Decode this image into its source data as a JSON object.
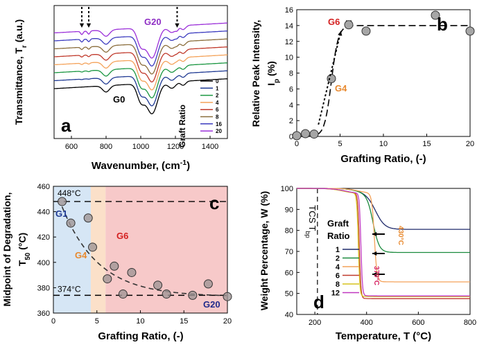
{
  "chart_data": [
    {
      "panel": "a",
      "type": "line",
      "title": "",
      "xlabel": "Wavenumber, (cm",
      "xlabel_sup": "-1",
      "xlabel_tail": ")",
      "ylabel": "Transmittance, T",
      "ylabel_sub": "r",
      "ylabel_tail": " (a.u.)",
      "xlim": [
        500,
        1500
      ],
      "xticks": [
        600,
        800,
        1000,
        1200,
        1400
      ],
      "annotations": [
        "G20",
        "G0"
      ],
      "legend_title": "Graft Ratio",
      "legend_position": "right",
      "arrow_positions_x": [
        660,
        700,
        1210
      ],
      "series": [
        {
          "name": "0",
          "color": "#000000",
          "offset": 0
        },
        {
          "name": "1",
          "color": "#1f3a93",
          "offset": 1
        },
        {
          "name": "2",
          "color": "#1a9641",
          "offset": 2
        },
        {
          "name": "4",
          "color": "#f4a259",
          "offset": 3
        },
        {
          "name": "6",
          "color": "#c0392b",
          "offset": 4
        },
        {
          "name": "8",
          "color": "#8a6d3b",
          "offset": 5
        },
        {
          "name": "16",
          "color": "#3b3bbf",
          "offset": 6
        },
        {
          "name": "20",
          "color": "#9b30d9",
          "offset": 7
        }
      ]
    },
    {
      "panel": "b",
      "type": "scatter",
      "title": "",
      "xlabel": "Grafting Ratio, (-)",
      "ylabel": "Relative Peak Intensity,",
      "ylabel2": "I",
      "ylabel2_sub": "p",
      "ylabel2_tail": " (%)",
      "xlim": [
        0,
        20
      ],
      "ylim": [
        0,
        16
      ],
      "xticks": [
        0,
        5,
        10,
        15,
        20
      ],
      "yticks": [
        0,
        2,
        4,
        6,
        8,
        10,
        12,
        14,
        16
      ],
      "annotations": [
        "G6",
        "G4"
      ],
      "x": [
        0,
        1,
        2,
        4,
        6,
        8,
        16,
        20
      ],
      "y": [
        0.1,
        0.35,
        0.3,
        7.3,
        14.1,
        13.3,
        15.3,
        13.3
      ],
      "yerr": [
        0,
        0.2,
        0,
        0,
        0.5,
        0,
        0,
        0
      ],
      "fit": {
        "type": "sigmoid",
        "plateau": 14,
        "midpoint": 4,
        "steepness": 2.5
      }
    },
    {
      "panel": "c",
      "type": "scatter",
      "title": "",
      "xlabel": "Grafting Ratio, (-)",
      "ylabel": "Midpoint of Degradation,",
      "ylabel2": "T",
      "ylabel2_sub": "50",
      "ylabel2_tail": " (°C)",
      "xlim": [
        0,
        20
      ],
      "ylim": [
        360,
        460
      ],
      "xticks": [
        0,
        5,
        10,
        15,
        20
      ],
      "yticks": [
        360,
        380,
        400,
        420,
        440,
        460
      ],
      "hlines": [
        {
          "value": 448,
          "label": "448°C"
        },
        {
          "value": 374,
          "label": "374°C"
        }
      ],
      "regions": [
        {
          "from": 0,
          "to": 4.3,
          "color": "#d6e6f5"
        },
        {
          "from": 4.3,
          "to": 6,
          "color": "#fbe0c9"
        },
        {
          "from": 6,
          "to": 20,
          "color": "#f7c9c9"
        }
      ],
      "annotations": [
        "G1",
        "G4",
        "G6",
        "G20"
      ],
      "x": [
        1,
        2,
        4,
        4.5,
        6.2,
        7,
        8,
        9,
        12,
        13,
        16,
        17.8,
        20
      ],
      "y": [
        448,
        431,
        435,
        412,
        387,
        397,
        375,
        392,
        382,
        375,
        374,
        383,
        373
      ],
      "fit": {
        "type": "exponential",
        "floor": 373,
        "amplitude": 90,
        "decay": 4.2
      }
    },
    {
      "panel": "d",
      "type": "line",
      "title": "",
      "xlabel": "Temperature, T (°C)",
      "ylabel": "Weight Percentage, W (%)",
      "xlim": [
        130,
        800
      ],
      "ylim": [
        40,
        100
      ],
      "xticks": [
        200,
        400,
        600,
        800
      ],
      "yticks": [
        40,
        50,
        60,
        70,
        80,
        90,
        100
      ],
      "vline": {
        "value": 210,
        "label": "TCS T",
        "label_sub": "bp"
      },
      "annotations": [
        "430°C",
        "370°C"
      ],
      "legend_title": "Graft Ratio",
      "legend_position": "left",
      "series": [
        {
          "name": "1",
          "color": "#1f2a6b",
          "onset": 435,
          "residual": 80.5,
          "width": 18
        },
        {
          "name": "2",
          "color": "#1a8a3c",
          "onset": 425,
          "residual": 69.5,
          "width": 12
        },
        {
          "name": "4",
          "color": "#f4a259",
          "onset": 430,
          "residual": 55.5,
          "width": 5
        },
        {
          "name": "6",
          "color": "#c0392b",
          "onset": 372,
          "residual": 47.5,
          "width": 3
        },
        {
          "name": "8",
          "color": "#d6c21c",
          "onset": 368,
          "residual": 48.5,
          "width": 3
        },
        {
          "name": "12",
          "color": "#c038c0",
          "onset": 378,
          "residual": 48.8,
          "width": 3
        }
      ]
    }
  ]
}
